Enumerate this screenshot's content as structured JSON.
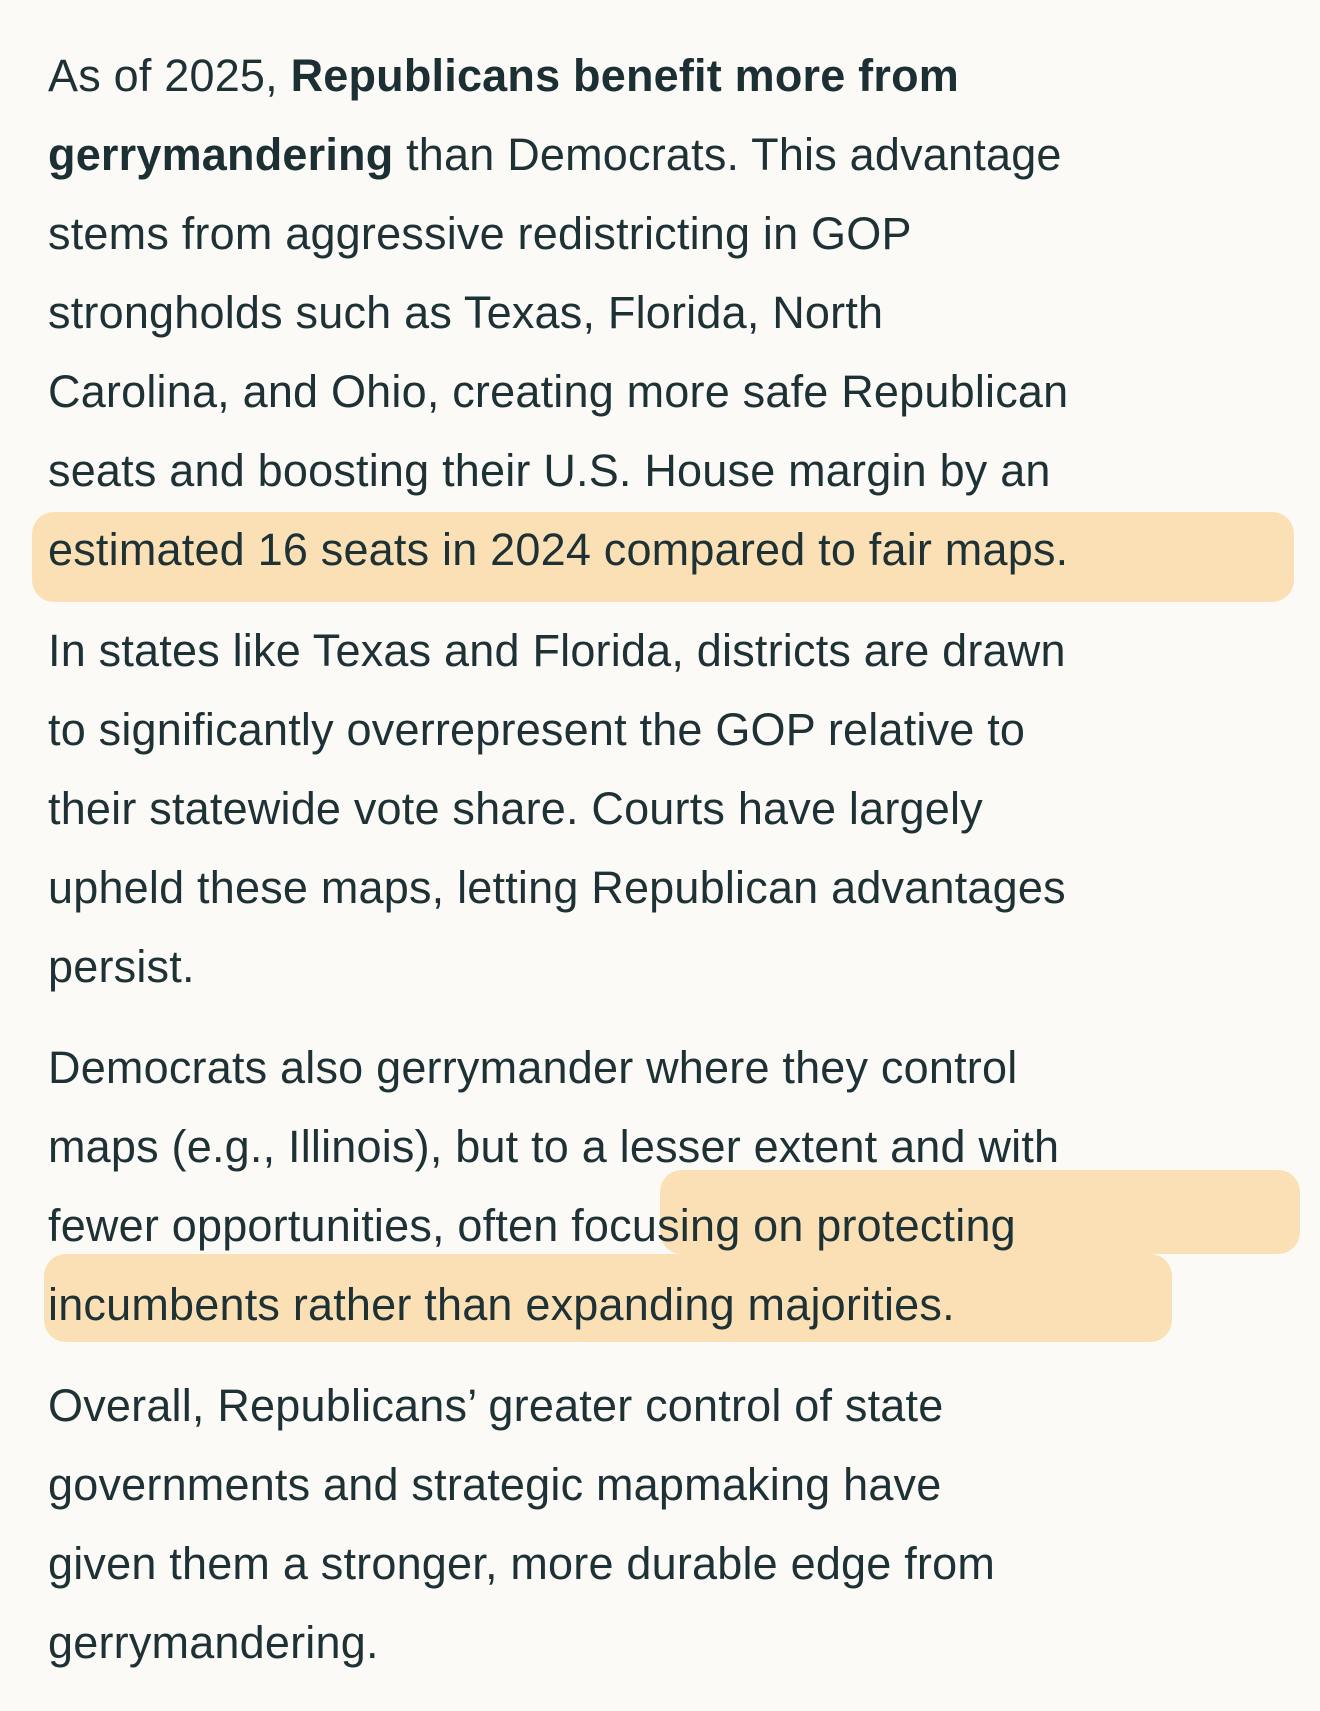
{
  "paragraphs": [
    {
      "lines": [
        {
          "pre": "As of 2025, ",
          "bold": "Republicans benefit more from",
          "post": ""
        },
        {
          "pre": "",
          "bold": "gerrymandering",
          "post": " than Democrats. This advantage"
        },
        {
          "pre": "stems from aggressive redistricting in GOP",
          "bold": "",
          "post": ""
        },
        {
          "pre": "strongholds such as Texas, Florida, North",
          "bold": "",
          "post": ""
        },
        {
          "pre": "Carolina, and Ohio, creating more safe Republican",
          "bold": "",
          "post": ""
        },
        {
          "pre": "seats and boosting their U.S. House margin by an",
          "bold": "",
          "post": ""
        },
        {
          "pre": "estimated 16 seats in 2024 compared to fair maps.",
          "bold": "",
          "post": ""
        }
      ]
    },
    {
      "lines": [
        {
          "pre": "In states like Texas and Florida, districts are drawn",
          "bold": "",
          "post": ""
        },
        {
          "pre": "to significantly overrepresent the GOP relative to",
          "bold": "",
          "post": ""
        },
        {
          "pre": "their statewide vote share. Courts have largely",
          "bold": "",
          "post": ""
        },
        {
          "pre": "upheld these maps, letting Republican advantages",
          "bold": "",
          "post": ""
        },
        {
          "pre": "persist.",
          "bold": "",
          "post": ""
        }
      ]
    },
    {
      "lines": [
        {
          "pre": "Democrats also gerrymander where they control",
          "bold": "",
          "post": ""
        },
        {
          "pre": "maps (e.g., Illinois), but to a lesser extent and with",
          "bold": "",
          "post": ""
        },
        {
          "pre": "fewer opportunities, often focusing on protecting",
          "bold": "",
          "post": ""
        },
        {
          "pre": "incumbents rather than expanding majorities.",
          "bold": "",
          "post": ""
        }
      ]
    },
    {
      "lines": [
        {
          "pre": "Overall, Republicans’ greater control of state",
          "bold": "",
          "post": ""
        },
        {
          "pre": "governments and strategic mapmaking have",
          "bold": "",
          "post": ""
        },
        {
          "pre": "given them a stronger, more durable edge from",
          "bold": "",
          "post": ""
        },
        {
          "pre": "gerrymandering.",
          "bold": "",
          "post": ""
        }
      ]
    }
  ],
  "highlight_color": "#fbd9a3",
  "text_color": "#1e3236",
  "background_color": "#fbfaf7"
}
